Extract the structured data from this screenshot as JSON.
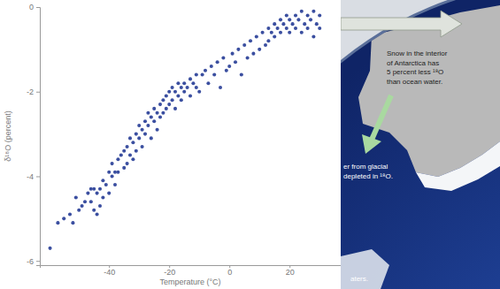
{
  "chart_data": {
    "type": "scatter",
    "x_label": "Temperature (°C)",
    "y_label": "δ¹⁸O (percent)",
    "color": "#3b4fa0",
    "marker": "circle",
    "xlim": [
      -63,
      37
    ],
    "xticks": [
      -40,
      -20,
      0,
      20
    ],
    "ylim": [
      -6.1,
      0
    ],
    "yticks": [
      0,
      -2,
      -4,
      -6
    ],
    "x": [
      -59.6,
      -57,
      -55,
      -53,
      -52,
      -51,
      -50,
      -49,
      -48,
      -47,
      -46,
      -46,
      -45,
      -45,
      -44,
      -44,
      -43,
      -43,
      -42,
      -42,
      -41,
      -40,
      -40,
      -39,
      -39,
      -38,
      -38,
      -37,
      -37,
      -36,
      -35,
      -35,
      -34,
      -34,
      -33,
      -33,
      -32,
      -32,
      -31,
      -31,
      -30,
      -30,
      -29,
      -29,
      -28,
      -28,
      -27,
      -27,
      -26,
      -26,
      -25,
      -25,
      -24,
      -24,
      -23,
      -23,
      -22,
      -22,
      -21,
      -21,
      -20,
      -20,
      -19,
      -19,
      -18,
      -18,
      -17,
      -17,
      -16,
      -16,
      -15,
      -15,
      -14,
      -13,
      -13,
      -12,
      -11,
      -11,
      -10,
      -9,
      -8,
      -7,
      -6,
      -5,
      -4,
      -3,
      -2,
      -1,
      0,
      1,
      2,
      3,
      4,
      5,
      6,
      7,
      8,
      9,
      10,
      11,
      12,
      13,
      13,
      14,
      15,
      15,
      16,
      17,
      17,
      18,
      19,
      19,
      20,
      20,
      21,
      22,
      22,
      23,
      24,
      24,
      25,
      26,
      26,
      27,
      28,
      28,
      29,
      30,
      30
    ],
    "values": [
      -5.7,
      -5.1,
      -5.0,
      -4.9,
      -5.1,
      -4.5,
      -4.8,
      -4.7,
      -4.6,
      -4.4,
      -4.3,
      -4.6,
      -4.3,
      -4.8,
      -4.4,
      -4.9,
      -4.3,
      -4.7,
      -4.1,
      -4.5,
      -4.2,
      -3.9,
      -4.4,
      -4.0,
      -3.7,
      -3.9,
      -4.2,
      -3.6,
      -3.9,
      -3.5,
      -3.8,
      -3.4,
      -3.3,
      -3.7,
      -3.5,
      -3.1,
      -3.2,
      -3.6,
      -3.0,
      -3.4,
      -3.1,
      -2.8,
      -2.9,
      -3.3,
      -2.7,
      -3.0,
      -2.8,
      -2.5,
      -2.6,
      -3.1,
      -2.4,
      -2.7,
      -2.5,
      -2.9,
      -2.3,
      -2.6,
      -2.2,
      -2.5,
      -2.4,
      -2.1,
      -2.0,
      -2.3,
      -2.2,
      -1.9,
      -2.0,
      -2.4,
      -2.1,
      -1.8,
      -1.9,
      -2.2,
      -1.8,
      -2.0,
      -1.9,
      -1.7,
      -2.1,
      -1.8,
      -1.6,
      -1.9,
      -2.0,
      -1.6,
      -1.5,
      -1.8,
      -1.4,
      -1.6,
      -1.3,
      -1.9,
      -1.2,
      -1.5,
      -1.4,
      -1.1,
      -1.3,
      -1.0,
      -1.6,
      -0.9,
      -1.2,
      -0.8,
      -1.1,
      -0.7,
      -1.0,
      -0.6,
      -0.9,
      -0.5,
      -0.8,
      -0.6,
      -0.4,
      -0.7,
      -0.5,
      -0.3,
      -0.6,
      -0.4,
      -0.2,
      -0.5,
      -0.3,
      -0.6,
      -0.4,
      -0.2,
      -0.5,
      -0.3,
      -0.1,
      -0.6,
      -0.4,
      -0.2,
      -0.5,
      -0.3,
      -0.1,
      -0.7,
      -0.4,
      -0.2,
      -0.5
    ],
    "annotations": [
      [
        "Snow in the interior",
        "of Antarctica has",
        "5 percent less ¹⁸O",
        "than ocean water."
      ],
      [
        "er from glacial",
        "depleted in ¹⁸O."
      ],
      [
        "aters."
      ]
    ]
  }
}
